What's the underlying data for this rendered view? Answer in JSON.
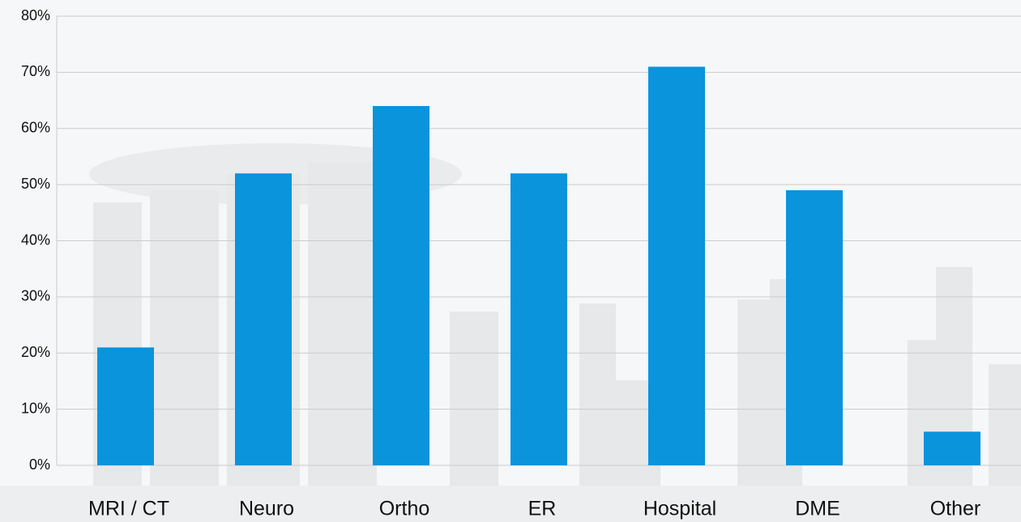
{
  "chart_data": {
    "type": "bar",
    "categories": [
      "MRI / CT",
      "Neuro",
      "Ortho",
      "ER",
      "Hospital",
      "DME",
      "Other"
    ],
    "values": [
      21,
      52,
      64,
      52,
      71,
      49,
      6
    ],
    "color": "#0994dc",
    "ylim": [
      0,
      80
    ],
    "yticks": [
      {
        "value": 0,
        "label": "0%"
      },
      {
        "value": 10,
        "label": "10%"
      },
      {
        "value": 20,
        "label": "20%"
      },
      {
        "value": 30,
        "label": "30%"
      },
      {
        "value": 40,
        "label": "40%"
      },
      {
        "value": 50,
        "label": "50%"
      },
      {
        "value": 60,
        "label": "60%"
      },
      {
        "value": 70,
        "label": "70%"
      },
      {
        "value": 80,
        "label": "80%"
      }
    ],
    "grid": true
  }
}
